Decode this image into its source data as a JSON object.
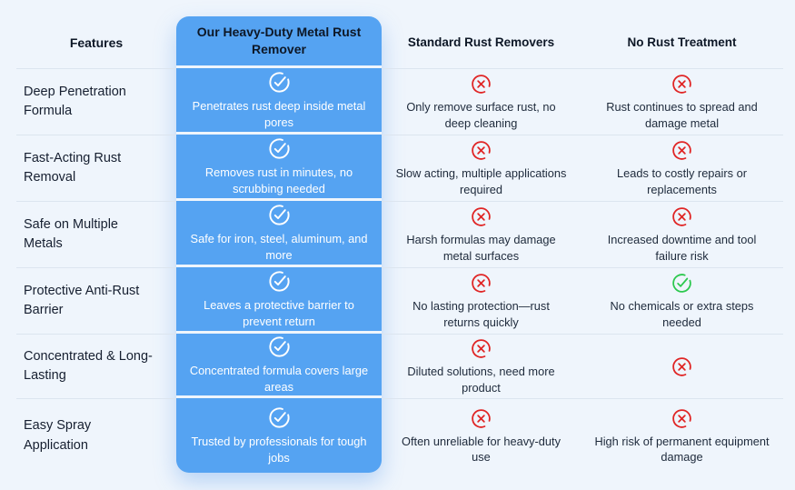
{
  "colors": {
    "bg": "#EFF5FC",
    "highlight": "#55A3F2",
    "negative": "#E02424",
    "positive": "#2BC84D",
    "check_on_highlight": "#FFFFFF"
  },
  "table": {
    "columns": [
      {
        "label": "Features"
      },
      {
        "label": "Our Heavy-Duty Metal Rust Remover",
        "highlight": true
      },
      {
        "label": "Standard Rust Removers"
      },
      {
        "label": "No Rust Treatment"
      }
    ],
    "rows": [
      {
        "feature": "Deep Penetration Formula",
        "ours": {
          "icon": "white-check-circle-icon",
          "text": "Penetrates rust deep inside metal pores"
        },
        "standard": {
          "icon": "red-cross-circle-icon",
          "text": "Only remove surface rust, no deep cleaning"
        },
        "none": {
          "icon": "red-cross-circle-icon",
          "text": "Rust continues to spread and damage metal"
        }
      },
      {
        "feature": "Fast-Acting Rust Removal",
        "ours": {
          "icon": "white-check-circle-icon",
          "text": "Removes rust in minutes, no scrubbing needed"
        },
        "standard": {
          "icon": "red-cross-circle-icon",
          "text": "Slow acting, multiple applications required"
        },
        "none": {
          "icon": "red-cross-circle-icon",
          "text": "Leads to costly repairs or replacements"
        }
      },
      {
        "feature": "Safe on Multiple Metals",
        "ours": {
          "icon": "white-check-circle-icon",
          "text": "Safe for iron, steel, aluminum, and more"
        },
        "standard": {
          "icon": "red-cross-circle-icon",
          "text": "Harsh formulas may damage metal surfaces"
        },
        "none": {
          "icon": "red-cross-circle-icon",
          "text": "Increased downtime and tool failure risk"
        }
      },
      {
        "feature": "Protective Anti-Rust Barrier",
        "ours": {
          "icon": "white-check-circle-icon",
          "text": "Leaves a protective barrier to prevent return"
        },
        "standard": {
          "icon": "red-cross-circle-icon",
          "text": "No lasting protection—rust returns quickly"
        },
        "none": {
          "icon": "green-check-circle-icon",
          "text": "No chemicals or extra steps needed"
        }
      },
      {
        "feature": "Concentrated & Long-Lasting",
        "ours": {
          "icon": "white-check-circle-icon",
          "text": "Concentrated formula covers large areas"
        },
        "standard": {
          "icon": "red-cross-circle-icon",
          "text": "Diluted solutions, need more product"
        },
        "none": {
          "icon": "red-cross-circle-icon",
          "text": ""
        }
      },
      {
        "feature": "Easy Spray Application",
        "ours": {
          "icon": "white-check-circle-icon",
          "text": "Trusted by professionals for tough jobs"
        },
        "standard": {
          "icon": "red-cross-circle-icon",
          "text": "Often unreliable for heavy-duty use"
        },
        "none": {
          "icon": "red-cross-circle-icon",
          "text": "High risk of permanent equipment damage"
        }
      }
    ]
  }
}
